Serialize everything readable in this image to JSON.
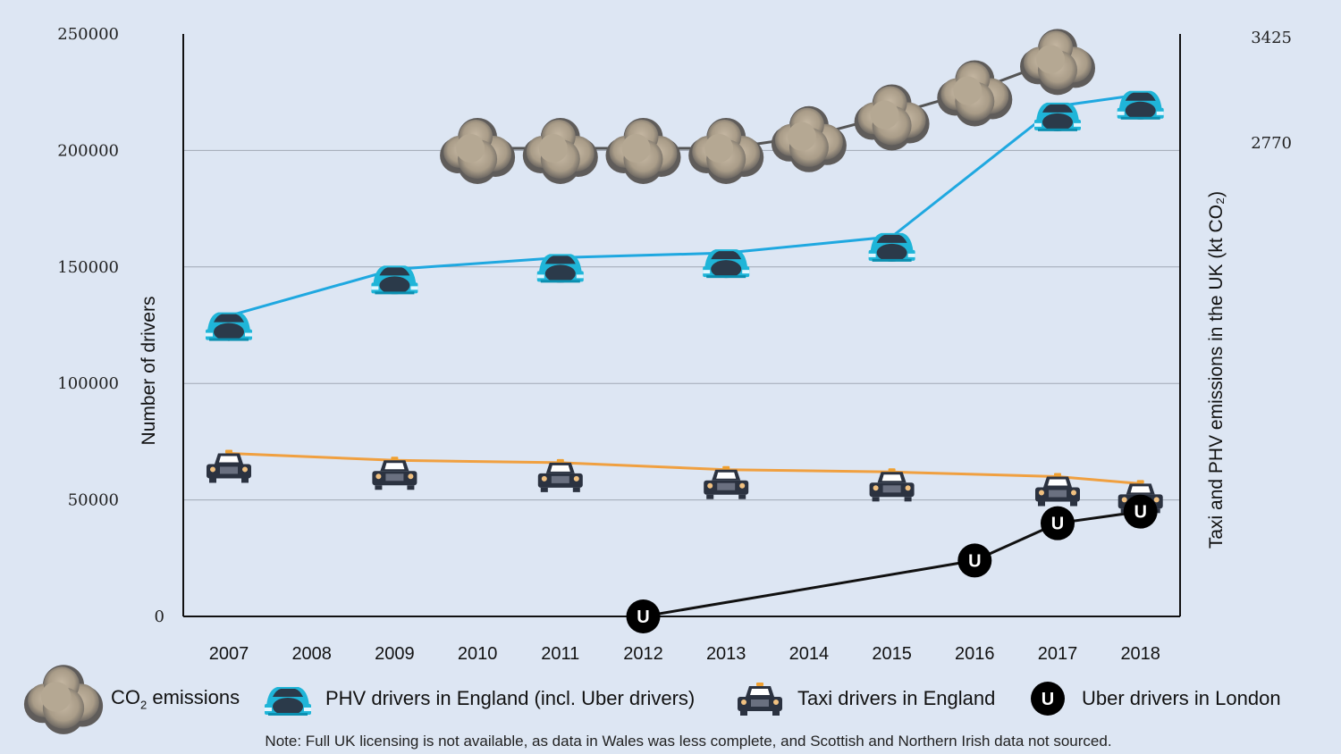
{
  "chart_data": {
    "type": "line",
    "title": "",
    "categories": [
      "2007",
      "2008",
      "2009",
      "2010",
      "2011",
      "2012",
      "2013",
      "2014",
      "2015",
      "2016",
      "2017",
      "2018"
    ],
    "y_left": {
      "label": "Number of drivers",
      "ylim": [
        0,
        250000
      ],
      "ticks": [
        "250000",
        "200000",
        "150000",
        "100000",
        "50000",
        "0"
      ]
    },
    "y_right": {
      "label": "Taxi and PHV emissions in the UK (kt CO₂)",
      "ticks": [
        "3425",
        "2770"
      ],
      "tick_values": [
        3425,
        2770
      ]
    },
    "grid": true,
    "series": [
      {
        "name": "PHV drivers in England (incl. Uber drivers)",
        "axis": "left",
        "color": "#1fa8e0",
        "icon": "car-icon",
        "x": [
          "2007",
          "2009",
          "2011",
          "2013",
          "2015",
          "2017",
          "2018"
        ],
        "values": [
          129000,
          149000,
          154000,
          156000,
          163000,
          219000,
          224000
        ]
      },
      {
        "name": "Taxi drivers in England",
        "axis": "left",
        "color": "#f0a040",
        "icon": "taxi-icon",
        "x": [
          "2007",
          "2009",
          "2011",
          "2013",
          "2015",
          "2017",
          "2018"
        ],
        "values": [
          70000,
          67000,
          66000,
          63000,
          62000,
          60000,
          57000
        ]
      },
      {
        "name": "Uber drivers in London",
        "axis": "left",
        "color": "#111111",
        "icon": "uber-icon",
        "x": [
          "2012",
          "2016",
          "2017",
          "2018"
        ],
        "values": [
          0,
          24000,
          40000,
          45000
        ]
      },
      {
        "name": "CO₂ emissions",
        "axis": "right",
        "color": "#555555",
        "icon": "cloud-icon",
        "x": [
          "2010",
          "2011",
          "2012",
          "2013",
          "2014",
          "2015",
          "2016",
          "2017"
        ],
        "values": [
          2737,
          2737,
          2737,
          2737,
          2810,
          2945,
          3095,
          3290
        ]
      }
    ]
  },
  "legend": {
    "co2_text": "CO",
    "co2_sub": "2",
    "co2_rest": " emissions",
    "phv": "PHV drivers in England (incl. Uber drivers)",
    "taxi": "Taxi drivers in England",
    "uber": "Uber drivers in London",
    "uber_letter": "U"
  },
  "note": "Note: Full UK licensing is not available, as data in Wales was less complete, and Scottish and Northern Irish data not sourced."
}
